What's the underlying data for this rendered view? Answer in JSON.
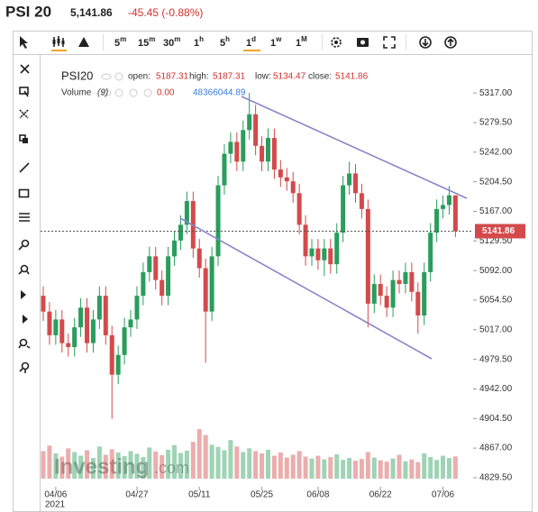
{
  "header": {
    "title": "PSI 20",
    "price": "5,141.86",
    "change": "-45.45 (-0.88%)"
  },
  "toolbar": {
    "intervals": [
      {
        "num": "5",
        "unit": "m"
      },
      {
        "num": "15",
        "unit": "m"
      },
      {
        "num": "30",
        "unit": "m"
      },
      {
        "num": "1",
        "unit": "h"
      },
      {
        "num": "5",
        "unit": "h"
      },
      {
        "num": "1",
        "unit": "d"
      },
      {
        "num": "1",
        "unit": "w"
      },
      {
        "num": "1",
        "unit": "M"
      }
    ],
    "active": 5
  },
  "legend": {
    "symbol": "PSI20",
    "open_label": "open:",
    "open": "5187.31",
    "high_label": "high:",
    "high": "5187.31",
    "low_label": "low:",
    "low": "5134.47",
    "close_label": "close:",
    "close": "5141.86",
    "volume_label": "Volume",
    "volume_period": "(9)",
    "volume_ma": "0.00",
    "volume_value": "48366044.89"
  },
  "watermark": {
    "brand": "Investing",
    "suffix": ".com"
  },
  "chart_data": {
    "type": "candlestick",
    "up_color": "#2a9d5c",
    "down_color": "#d44a4a",
    "categories": [
      null,
      null,
      "04/06",
      null,
      null,
      null,
      null,
      null,
      null,
      null,
      null,
      null,
      null,
      null,
      null,
      "04/27",
      null,
      null,
      null,
      null,
      null,
      null,
      null,
      null,
      null,
      "05/11",
      null,
      null,
      null,
      null,
      null,
      null,
      null,
      null,
      null,
      "05/25",
      null,
      null,
      null,
      null,
      null,
      null,
      null,
      null,
      "06/08",
      null,
      null,
      null,
      null,
      null,
      null,
      null,
      null,
      null,
      "06/22",
      null,
      null,
      null,
      null,
      null,
      null,
      null,
      null,
      null,
      "07/06",
      null,
      null
    ],
    "year": "2021",
    "open": [
      5060,
      5040,
      5010,
      5030,
      5000,
      4995,
      5020,
      5045,
      5000,
      5030,
      5060,
      5010,
      4960,
      4985,
      5020,
      5030,
      5060,
      5090,
      5110,
      5080,
      5060,
      5110,
      5130,
      5150,
      5180,
      5120,
      5095,
      5040,
      5110,
      5200,
      5240,
      5255,
      5230,
      5270,
      5290,
      5250,
      5230,
      5260,
      5220,
      5210,
      5205,
      5190,
      5150,
      5110,
      5120,
      5105,
      5120,
      5100,
      5140,
      5200,
      5215,
      5190,
      5170,
      5050,
      5075,
      5060,
      5045,
      5080,
      5075,
      5090,
      5065,
      5035,
      5090,
      5140,
      5170,
      5175,
      5187.31
    ],
    "high": [
      5072,
      5052,
      5042,
      5042,
      5012,
      5032,
      5057,
      5057,
      5042,
      5072,
      5072,
      5022,
      4997,
      5032,
      5042,
      5072,
      5102,
      5122,
      5122,
      5092,
      5122,
      5142,
      5162,
      5192,
      5192,
      5132,
      5107,
      5122,
      5212,
      5252,
      5267,
      5267,
      5282,
      5317,
      5302,
      5262,
      5272,
      5272,
      5232,
      5222,
      5217,
      5202,
      5162,
      5132,
      5132,
      5132,
      5132,
      5152,
      5212,
      5230,
      5227,
      5202,
      5182,
      5087,
      5087,
      5072,
      5092,
      5092,
      5102,
      5102,
      5077,
      5102,
      5152,
      5182,
      5187,
      5199,
      5187.31
    ],
    "low": [
      5028,
      4998,
      4998,
      4988,
      4983,
      4983,
      5008,
      4988,
      4988,
      5018,
      4998,
      4904,
      4948,
      4973,
      5008,
      5018,
      5048,
      5078,
      5068,
      5048,
      5048,
      5098,
      5118,
      5138,
      5108,
      5083,
      4975,
      5028,
      5098,
      5188,
      5228,
      5218,
      5218,
      5258,
      5238,
      5218,
      5218,
      5208,
      5198,
      5193,
      5178,
      5138,
      5098,
      5098,
      5093,
      5085,
      5088,
      5088,
      5128,
      5188,
      5178,
      5158,
      5020,
      5038,
      5048,
      5033,
      5033,
      5063,
      5063,
      5053,
      5012,
      5023,
      5078,
      5128,
      5158,
      5163,
      5134.47
    ],
    "close": [
      5040,
      5010,
      5030,
      5000,
      4995,
      5020,
      5045,
      5000,
      5030,
      5060,
      5010,
      4960,
      4985,
      5020,
      5030,
      5060,
      5090,
      5110,
      5080,
      5060,
      5110,
      5130,
      5150,
      5180,
      5120,
      5095,
      5040,
      5110,
      5200,
      5240,
      5255,
      5230,
      5270,
      5290,
      5250,
      5230,
      5260,
      5220,
      5210,
      5205,
      5190,
      5150,
      5110,
      5120,
      5105,
      5120,
      5100,
      5140,
      5200,
      5215,
      5190,
      5170,
      5050,
      5075,
      5060,
      5045,
      5080,
      5075,
      5090,
      5065,
      5035,
      5090,
      5140,
      5170,
      5175,
      5187.31,
      5141.86
    ],
    "volume": [
      60000000,
      72000000,
      55000000,
      48000000,
      66000000,
      58000000,
      50000000,
      62000000,
      45000000,
      70000000,
      52000000,
      64000000,
      57000000,
      49000000,
      60000000,
      54000000,
      47000000,
      68000000,
      59000000,
      51000000,
      63000000,
      73000000,
      56000000,
      61000000,
      80000000,
      108000000,
      95000000,
      74000000,
      69000000,
      62000000,
      84000000,
      70000000,
      58000000,
      66000000,
      60000000,
      55000000,
      63000000,
      50000000,
      57000000,
      46000000,
      52000000,
      60000000,
      48000000,
      44000000,
      50000000,
      42000000,
      47000000,
      53000000,
      41000000,
      45000000,
      39000000,
      43000000,
      58000000,
      46000000,
      40000000,
      37000000,
      44000000,
      52000000,
      38000000,
      42000000,
      36000000,
      55000000,
      47000000,
      41000000,
      50000000,
      45000000,
      48366044.89
    ],
    "ylim": [
      4818,
      5364
    ],
    "yticks": [
      {
        "value": 5317,
        "label": "5317.00"
      },
      {
        "value": 5279.5,
        "label": "5279.50"
      },
      {
        "value": 5242,
        "label": "5242.00"
      },
      {
        "value": 5204.5,
        "label": "5204.50"
      },
      {
        "value": 5167,
        "label": "5167.00"
      },
      {
        "value": 5129.5,
        "label": "5129.50"
      },
      {
        "value": 5092,
        "label": "5092.00"
      },
      {
        "value": 5054.5,
        "label": "5054.50"
      },
      {
        "value": 5017,
        "label": "5017.00"
      },
      {
        "value": 4979.5,
        "label": "4979.50"
      },
      {
        "value": 4942,
        "label": "4942.00"
      },
      {
        "value": 4904.5,
        "label": "4904.50"
      },
      {
        "value": 4867,
        "label": "4867.00"
      },
      {
        "value": 4829.5,
        "label": "4829.50"
      }
    ],
    "last_price": {
      "value": 5141.86,
      "label": "5141.86"
    }
  }
}
